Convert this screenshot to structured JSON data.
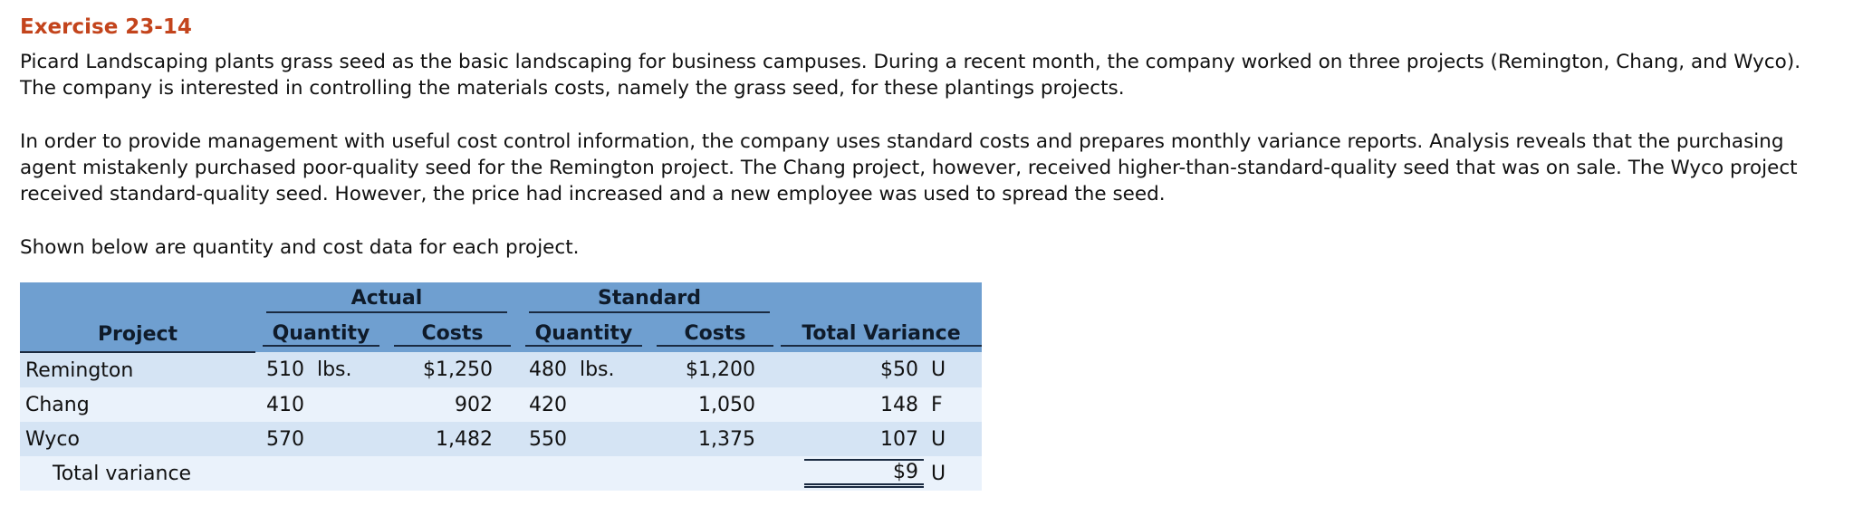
{
  "title": "Exercise 23-14",
  "paragraphs": [
    "Picard Landscaping plants grass seed as the basic landscaping for business campuses. During a recent month, the company worked on three projects (Remington, Chang, and Wyco). The company is interested in controlling the materials costs, namely the grass seed, for these plantings projects.",
    "In order to provide management with useful cost control information, the company uses standard costs and prepares monthly variance reports. Analysis reveals that the purchasing agent mistakenly purchased poor-quality seed for the Remington project. The Chang project, however, received higher-than-standard-quality seed that was on sale. The Wyco project received standard-quality seed. However, the price had increased and a new employee was used to spread the seed.",
    "Shown below are quantity and cost data for each project."
  ],
  "table": {
    "group_headers": {
      "actual": "Actual",
      "standard": "Standard"
    },
    "columns": {
      "project": "Project",
      "actual_quantity": "Quantity",
      "actual_costs": "Costs",
      "standard_quantity": "Quantity",
      "standard_costs": "Costs",
      "total_variance": "Total Variance"
    },
    "rows": [
      {
        "project": "Remington",
        "actual_quantity": "510  lbs.",
        "actual_costs": "$1,250",
        "standard_quantity": "480  lbs.",
        "standard_costs": "$1,200",
        "variance": "$50",
        "flag": "U"
      },
      {
        "project": "Chang",
        "actual_quantity": "410",
        "actual_costs": "902",
        "standard_quantity": "420",
        "standard_costs": "1,050",
        "variance": "148",
        "flag": "F"
      },
      {
        "project": "Wyco",
        "actual_quantity": "570",
        "actual_costs": "1,482",
        "standard_quantity": "550",
        "standard_costs": "1,375",
        "variance": "107",
        "flag": "U"
      }
    ],
    "total": {
      "label": "Total variance",
      "variance": "$9",
      "flag": "U"
    }
  },
  "colors": {
    "title": "#c3441c",
    "header_bg": "#6f9fd0",
    "row_dark": "#d5e4f4",
    "row_light": "#eaf2fb"
  }
}
